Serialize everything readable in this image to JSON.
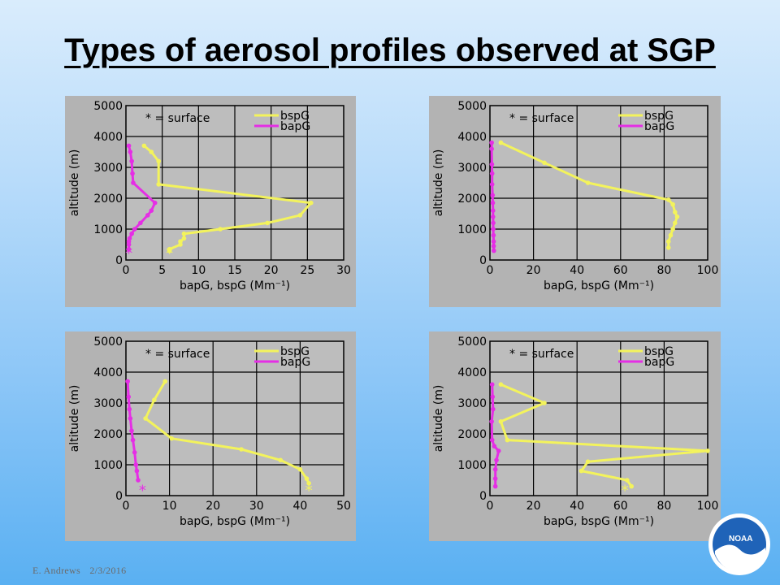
{
  "slide": {
    "title": "Types of aerosol profiles observed at SGP",
    "footer_author": "E. Andrews",
    "footer_date": "2/3/2016",
    "logo_text": "NOAA",
    "colors": {
      "bspG": "#f3f35c",
      "bapG": "#e52ee5",
      "panel_bg": "#b3b3b3",
      "plot_bg": "#bdbdbd"
    }
  },
  "chart_data": [
    {
      "type": "line",
      "title": "",
      "xlabel": "bapG, bspG (Mm⁻¹)",
      "ylabel": "altitude (m)",
      "xlim": [
        0,
        30
      ],
      "ylim": [
        0,
        5000
      ],
      "xticks": [
        "0",
        "5",
        "10",
        "15",
        "20",
        "25",
        "30"
      ],
      "yticks": [
        "0",
        "1000",
        "2000",
        "3000",
        "4000",
        "5000"
      ],
      "grid": true,
      "legend": "top-right",
      "annotation": "* = surface",
      "series": [
        {
          "name": "bspG",
          "color": "#f3f35c",
          "x": [
            2.5,
            3.5,
            4.5,
            4.5,
            25.5,
            24,
            19.5,
            13,
            8,
            8,
            7.5,
            7.5,
            6,
            6
          ],
          "y": [
            3700,
            3500,
            3200,
            2450,
            1850,
            1450,
            1200,
            1000,
            850,
            700,
            600,
            500,
            350,
            300
          ]
        },
        {
          "name": "bapG",
          "color": "#e52ee5",
          "x": [
            0.4,
            0.6,
            0.8,
            0.9,
            1.0,
            4.0,
            3.5,
            3.0,
            2.0,
            1.2,
            0.8,
            0.5,
            0.4,
            0.4,
            0.4
          ],
          "y": [
            3700,
            3500,
            3200,
            2800,
            2500,
            1850,
            1600,
            1450,
            1200,
            1000,
            850,
            700,
            600,
            500,
            350
          ]
        }
      ],
      "surface_markers": [
        {
          "series": "bspG",
          "x": 6,
          "y": 300
        },
        {
          "series": "bapG",
          "x": 0.4,
          "y": 300
        }
      ]
    },
    {
      "type": "line",
      "title": "",
      "xlabel": "bapG, bspG (Mm⁻¹)",
      "ylabel": "altitude (m)",
      "xlim": [
        0,
        100
      ],
      "ylim": [
        0,
        5000
      ],
      "xticks": [
        "0",
        "20",
        "40",
        "60",
        "80",
        "100"
      ],
      "yticks": [
        "0",
        "1000",
        "2000",
        "3000",
        "4000",
        "5000"
      ],
      "grid": true,
      "legend": "top-right",
      "annotation": "* = surface",
      "series": [
        {
          "name": "bspG",
          "color": "#f3f35c",
          "x": [
            5,
            25,
            45,
            82,
            84,
            85,
            86,
            85,
            84,
            83,
            82,
            82
          ],
          "y": [
            3800,
            3150,
            2500,
            1950,
            1800,
            1550,
            1400,
            1200,
            1000,
            800,
            600,
            400
          ]
        },
        {
          "name": "bapG",
          "color": "#e52ee5",
          "x": [
            0.8,
            0.8,
            0.9,
            1.0,
            1.0,
            1.2,
            1.3,
            1.4,
            1.4,
            1.5,
            1.5,
            1.6,
            1.7,
            1.7,
            1.8
          ],
          "y": [
            3800,
            3600,
            3100,
            2800,
            2450,
            2100,
            1850,
            1600,
            1400,
            1200,
            1000,
            800,
            600,
            450,
            300
          ]
        }
      ],
      "surface_markers": []
    },
    {
      "type": "line",
      "title": "",
      "xlabel": "bapG, bspG (Mm⁻¹)",
      "ylabel": "altitude (m)",
      "xlim": [
        0,
        50
      ],
      "ylim": [
        0,
        5000
      ],
      "xticks": [
        "0",
        "10",
        "20",
        "30",
        "40",
        "50"
      ],
      "yticks": [
        "0",
        "1000",
        "2000",
        "3000",
        "4000",
        "5000"
      ],
      "grid": true,
      "legend": "top-right",
      "annotation": "* = surface",
      "series": [
        {
          "name": "bspG",
          "color": "#f3f35c",
          "x": [
            9,
            6.5,
            4.5,
            10.5,
            26.5,
            35.5,
            40,
            41.5,
            42
          ],
          "y": [
            3700,
            3100,
            2500,
            1850,
            1500,
            1150,
            850,
            550,
            400
          ]
        },
        {
          "name": "bapG",
          "color": "#e52ee5",
          "x": [
            0.4,
            0.6,
            0.8,
            1.0,
            1.3,
            1.6,
            2.0,
            2.3,
            2.5,
            2.8
          ],
          "y": [
            3700,
            3200,
            2800,
            2500,
            2100,
            1800,
            1400,
            1000,
            800,
            500
          ]
        }
      ],
      "surface_markers": [
        {
          "series": "bspG",
          "x": 42,
          "y": 250
        },
        {
          "series": "bapG",
          "x": 3.8,
          "y": 250
        }
      ]
    },
    {
      "type": "line",
      "title": "",
      "xlabel": "bapG, bspG (Mm⁻¹)",
      "ylabel": "altitude (m)",
      "xlim": [
        0,
        100
      ],
      "ylim": [
        0,
        5000
      ],
      "xticks": [
        "0",
        "20",
        "40",
        "60",
        "80",
        "100"
      ],
      "yticks": [
        "0",
        "1000",
        "2000",
        "3000",
        "4000",
        "5000"
      ],
      "grid": true,
      "legend": "top-right",
      "annotation": "* = surface",
      "series": [
        {
          "name": "bspG",
          "color": "#f3f35c",
          "x": [
            5,
            25,
            5,
            8,
            100,
            45,
            42,
            63,
            65
          ],
          "y": [
            3600,
            3000,
            2400,
            1800,
            1450,
            1100,
            800,
            500,
            300
          ]
        },
        {
          "name": "bapG",
          "color": "#e52ee5",
          "x": [
            1,
            1.2,
            1.4,
            0.8,
            1,
            2,
            4,
            3,
            2.5,
            2.5,
            2.5
          ],
          "y": [
            3600,
            3200,
            2800,
            2400,
            1800,
            1600,
            1450,
            1150,
            850,
            550,
            300
          ]
        }
      ],
      "surface_markers": [
        {
          "series": "bspG",
          "x": 62,
          "y": 250
        }
      ]
    }
  ]
}
